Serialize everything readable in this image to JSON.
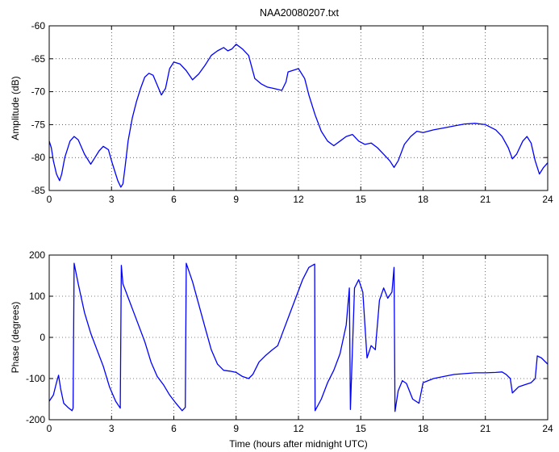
{
  "figure": {
    "title": "NAA20080207.txt",
    "line_color": "#0000ff",
    "grid": true,
    "grid_style": "dotted"
  },
  "chart_data": [
    {
      "type": "line",
      "title": "NAA20080207.txt",
      "xlabel": "",
      "ylabel": "Amplitude (dB)",
      "xlim": [
        0,
        24
      ],
      "ylim": [
        -85,
        -60
      ],
      "xticks": [
        0,
        3,
        6,
        9,
        12,
        15,
        18,
        21,
        24
      ],
      "yticks": [
        -85,
        -80,
        -75,
        -70,
        -65,
        -60
      ],
      "grid": true,
      "series": [
        {
          "x": [
            0,
            0.1,
            0.2,
            0.35,
            0.5,
            0.6,
            0.75,
            1.0,
            1.2,
            1.4,
            1.7,
            2.0,
            2.2,
            2.4,
            2.6,
            2.85,
            3.0,
            3.15,
            3.3,
            3.45,
            3.55,
            3.65,
            3.8,
            4.0,
            4.2,
            4.4,
            4.6,
            4.8,
            5.0,
            5.2,
            5.4,
            5.6,
            5.8,
            6.0,
            6.3,
            6.6,
            6.9,
            7.2,
            7.5,
            7.8,
            8.1,
            8.4,
            8.6,
            8.8,
            9.0,
            9.3,
            9.6,
            9.9,
            10.2,
            10.5,
            10.8,
            11.2,
            11.4,
            11.5,
            11.7,
            12.0,
            12.3,
            12.5,
            12.8,
            13.1,
            13.4,
            13.7,
            14.0,
            14.3,
            14.6,
            14.9,
            15.2,
            15.5,
            15.8,
            16.1,
            16.4,
            16.6,
            16.8,
            17.1,
            17.4,
            17.7,
            18.0,
            18.5,
            19.0,
            19.5,
            20.0,
            20.5,
            21.0,
            21.5,
            21.8,
            22.1,
            22.3,
            22.5,
            22.8,
            23.0,
            23.2,
            23.4,
            23.6,
            23.8,
            24.0
          ],
          "y": [
            -77.5,
            -78.5,
            -80.5,
            -82.5,
            -83.5,
            -82.5,
            -80,
            -77.5,
            -76.8,
            -77.3,
            -79.5,
            -81,
            -80,
            -79,
            -78.3,
            -78.8,
            -80.5,
            -82,
            -83.5,
            -84.5,
            -84,
            -81.5,
            -77.5,
            -74,
            -71.5,
            -69.5,
            -67.8,
            -67.2,
            -67.5,
            -69,
            -70.5,
            -69.5,
            -66.5,
            -65.5,
            -65.8,
            -66.8,
            -68.2,
            -67.3,
            -66,
            -64.5,
            -63.8,
            -63.3,
            -63.8,
            -63.5,
            -62.8,
            -63.5,
            -64.5,
            -68,
            -68.8,
            -69.3,
            -69.5,
            -69.8,
            -68.5,
            -67,
            -66.8,
            -66.5,
            -68,
            -70.5,
            -73.5,
            -76,
            -77.5,
            -78.2,
            -77.5,
            -76.8,
            -76.5,
            -77.5,
            -78,
            -77.8,
            -78.5,
            -79.5,
            -80.5,
            -81.5,
            -80.5,
            -78,
            -76.8,
            -76,
            -76.2,
            -75.8,
            -75.5,
            -75.2,
            -74.9,
            -74.8,
            -75,
            -75.8,
            -76.8,
            -78.5,
            -80.2,
            -79.5,
            -77.5,
            -76.8,
            -77.8,
            -80.5,
            -82.5,
            -81.5,
            -80.8
          ]
        }
      ]
    },
    {
      "type": "line",
      "title": "",
      "xlabel": "Time (hours after midnight UTC)",
      "ylabel": "Phase (degrees)",
      "xlim": [
        0,
        24
      ],
      "ylim": [
        -200,
        200
      ],
      "xticks": [
        0,
        3,
        6,
        9,
        12,
        15,
        18,
        21,
        24
      ],
      "yticks": [
        -200,
        -100,
        0,
        100,
        200
      ],
      "grid": true,
      "series": [
        {
          "x": [
            0,
            0.2,
            0.35,
            0.45,
            0.55,
            0.7,
            0.9,
            1.1,
            1.15,
            1.2,
            1.4,
            1.7,
            2.0,
            2.3,
            2.6,
            2.9,
            3.2,
            3.42,
            3.47,
            3.55,
            3.7,
            4.0,
            4.3,
            4.6,
            4.9,
            5.2,
            5.5,
            5.8,
            6.1,
            6.4,
            6.55,
            6.6,
            6.9,
            7.2,
            7.5,
            7.8,
            8.1,
            8.4,
            8.7,
            9.0,
            9.3,
            9.6,
            9.8,
            10.1,
            10.4,
            10.7,
            11.0,
            11.3,
            11.6,
            11.9,
            12.2,
            12.5,
            12.78,
            12.8,
            13.1,
            13.4,
            13.7,
            14.0,
            14.3,
            14.45,
            14.5,
            14.7,
            14.9,
            15.1,
            15.3,
            15.5,
            15.7,
            15.9,
            16.1,
            16.3,
            16.5,
            16.6,
            16.65,
            16.8,
            17.0,
            17.2,
            17.5,
            17.8,
            18.0,
            18.5,
            19.0,
            19.5,
            20.0,
            20.5,
            21.0,
            21.5,
            21.8,
            22.0,
            22.2,
            22.3,
            22.6,
            22.9,
            23.2,
            23.4,
            23.5,
            23.7,
            24.0
          ],
          "y": [
            -155,
            -140,
            -110,
            -92,
            -125,
            -160,
            -170,
            -178,
            -172,
            180,
            130,
            60,
            10,
            -30,
            -70,
            -120,
            -155,
            -172,
            175,
            130,
            110,
            70,
            30,
            -10,
            -60,
            -95,
            -115,
            -140,
            -160,
            -178,
            -170,
            180,
            135,
            80,
            25,
            -30,
            -65,
            -80,
            -82,
            -85,
            -95,
            -100,
            -90,
            -60,
            -45,
            -32,
            -20,
            20,
            60,
            100,
            140,
            170,
            178,
            -178,
            -150,
            -110,
            -80,
            -40,
            30,
            120,
            -175,
            120,
            140,
            110,
            -50,
            -20,
            -30,
            90,
            120,
            95,
            110,
            170,
            -180,
            -130,
            -105,
            -112,
            -150,
            -160,
            -110,
            -100,
            -95,
            -90,
            -88,
            -86,
            -86,
            -85,
            -84,
            -90,
            -100,
            -135,
            -120,
            -115,
            -110,
            -100,
            -45,
            -50,
            -65
          ]
        }
      ]
    }
  ]
}
